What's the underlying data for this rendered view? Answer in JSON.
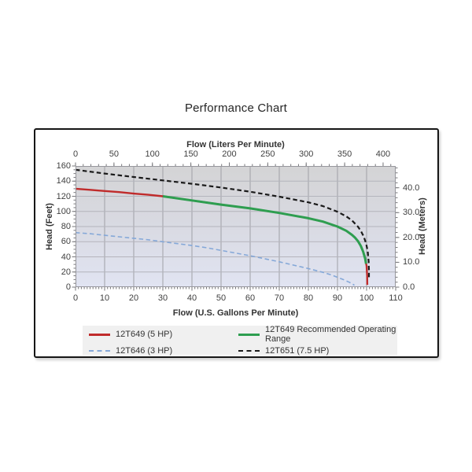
{
  "title": "Performance Chart",
  "chart_data": {
    "type": "line",
    "title": "Performance Chart",
    "x_axis_bottom": {
      "label": "Flow (U.S. Gallons Per Minute)",
      "min": 0,
      "max": 110,
      "major_ticks": [
        0,
        10,
        20,
        30,
        40,
        50,
        60,
        70,
        80,
        90,
        100,
        110
      ],
      "minor_step": 1
    },
    "x_axis_top": {
      "label": "Flow (Liters Per Minute)",
      "min": 0,
      "max": 416.4,
      "major_ticks": [
        0,
        50,
        100,
        150,
        200,
        250,
        300,
        350,
        400
      ],
      "minor_step": 10
    },
    "y_axis_left": {
      "label": "Head (Feet)",
      "min": 0,
      "max": 160,
      "major_ticks": [
        0,
        20,
        40,
        60,
        80,
        100,
        120,
        140,
        160
      ],
      "minor_step": 5
    },
    "y_axis_right": {
      "label": "Head (Meters)",
      "min": 0,
      "max": 48.8,
      "major_ticks": [
        {
          "value": 0,
          "label": "0.0"
        },
        {
          "value": 10,
          "label": "10.0"
        },
        {
          "value": 20,
          "label": "20.0"
        },
        {
          "value": 30,
          "label": "30.0"
        },
        {
          "value": 40,
          "label": "40.0"
        }
      ],
      "minor_step": 2
    },
    "grid": true,
    "plot_bg_gradient": [
      "#d4d4d5",
      "#d8d9e1",
      "#e1e4f2"
    ],
    "legend": {
      "position": "bottom",
      "bg": "#f0f0f0"
    },
    "series": [
      {
        "name": "12T649 (5 HP)",
        "color": "#c02b2b",
        "style": "solid",
        "width": 2.4,
        "points": [
          [
            0,
            130
          ],
          [
            5,
            128.5
          ],
          [
            10,
            127
          ],
          [
            15,
            125.5
          ],
          [
            20,
            123.5
          ],
          [
            25,
            122
          ],
          [
            30,
            120
          ],
          [
            40,
            114.5
          ],
          [
            50,
            109
          ],
          [
            60,
            104
          ],
          [
            70,
            98
          ],
          [
            80,
            91
          ],
          [
            85,
            86.5
          ],
          [
            90,
            80
          ],
          [
            93,
            74.5
          ],
          [
            95,
            69
          ],
          [
            96,
            65.5
          ],
          [
            97,
            61
          ],
          [
            98,
            54.5
          ],
          [
            98.8,
            47
          ],
          [
            99.5,
            38
          ],
          [
            100,
            28
          ],
          [
            100.2,
            15
          ],
          [
            100.25,
            3
          ]
        ]
      },
      {
        "name": "12T649 Recommended Operating Range",
        "color": "#2e9e50",
        "style": "solid",
        "width": 3,
        "points": [
          [
            30,
            120
          ],
          [
            40,
            114.5
          ],
          [
            50,
            109
          ],
          [
            60,
            104
          ],
          [
            70,
            98
          ],
          [
            80,
            91
          ],
          [
            85,
            86.5
          ],
          [
            90,
            80
          ],
          [
            93,
            74.5
          ],
          [
            95,
            69
          ],
          [
            96,
            65.5
          ],
          [
            97,
            61
          ],
          [
            98,
            54.5
          ],
          [
            98.8,
            47
          ],
          [
            99.5,
            38
          ],
          [
            99.8,
            31
          ]
        ]
      },
      {
        "name": "12T646 (3 HP)",
        "color": "#85a8d8",
        "style": "dashed",
        "width": 1.6,
        "points": [
          [
            0,
            72
          ],
          [
            5,
            70.5
          ],
          [
            10,
            68.5
          ],
          [
            15,
            66.5
          ],
          [
            20,
            64.5
          ],
          [
            25,
            62.5
          ],
          [
            30,
            60
          ],
          [
            35,
            57.5
          ],
          [
            40,
            55
          ],
          [
            45,
            52
          ],
          [
            50,
            48.5
          ],
          [
            55,
            45
          ],
          [
            60,
            41.5
          ],
          [
            65,
            37.5
          ],
          [
            70,
            33.5
          ],
          [
            75,
            29
          ],
          [
            80,
            24.5
          ],
          [
            85,
            19.5
          ],
          [
            88,
            16
          ],
          [
            90,
            13
          ],
          [
            92,
            10
          ],
          [
            94,
            6.5
          ],
          [
            95,
            4.5
          ],
          [
            95.8,
            2.5
          ]
        ]
      },
      {
        "name": "12T651 (7.5 HP)",
        "color": "#1a1a1a",
        "style": "dashed",
        "width": 2.2,
        "points": [
          [
            0,
            155
          ],
          [
            10,
            150
          ],
          [
            20,
            145.5
          ],
          [
            30,
            141
          ],
          [
            40,
            136.5
          ],
          [
            50,
            131.5
          ],
          [
            60,
            126
          ],
          [
            70,
            119.5
          ],
          [
            80,
            112
          ],
          [
            85,
            107
          ],
          [
            90,
            99.5
          ],
          [
            93,
            93.5
          ],
          [
            95,
            88
          ],
          [
            97,
            80
          ],
          [
            98,
            74.5
          ],
          [
            99,
            67
          ],
          [
            99.8,
            58
          ],
          [
            100.4,
            47
          ],
          [
            100.7,
            34
          ],
          [
            100.8,
            22
          ],
          [
            100.8,
            13
          ]
        ]
      }
    ]
  }
}
